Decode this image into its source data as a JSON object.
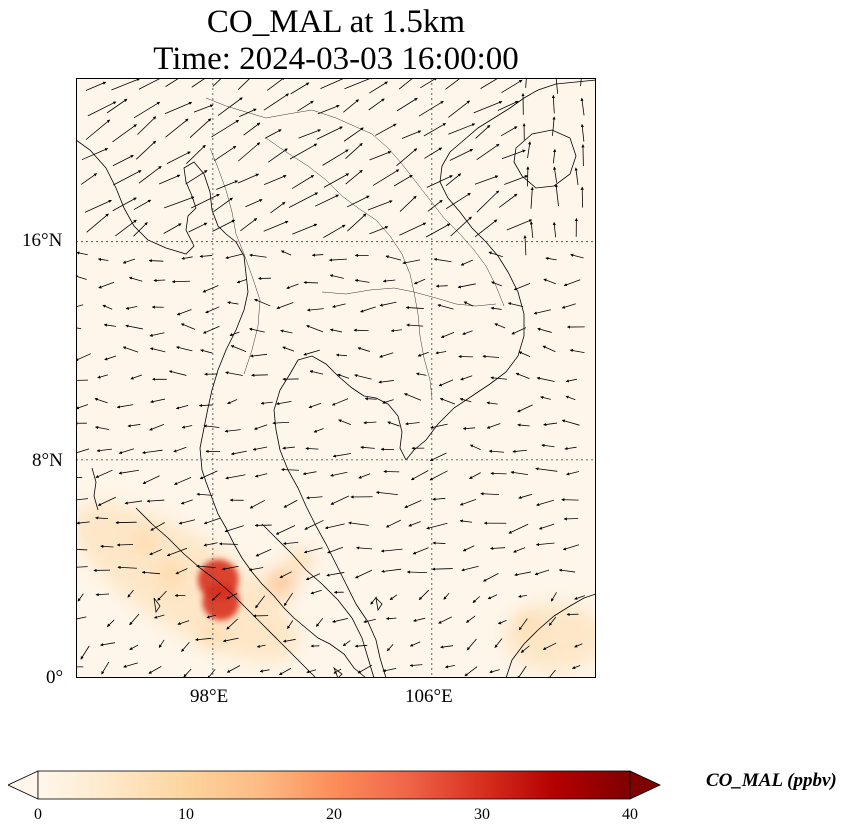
{
  "title": {
    "line1": "CO_MAL at 1.5km",
    "line2": "Time: 2024-03-03 16:00:00"
  },
  "map": {
    "extent": {
      "lon_min": 93,
      "lon_max": 112,
      "lat_min": 0,
      "lat_max": 22
    },
    "lat_ticks": [
      {
        "value": 16,
        "label": "16°N"
      },
      {
        "value": 8,
        "label": "8°N"
      },
      {
        "value": 0,
        "label": "0°"
      }
    ],
    "lon_ticks": [
      {
        "value": 98,
        "label": "98°E"
      },
      {
        "value": 106,
        "label": "106°E"
      }
    ],
    "background_color": "#fef6ea",
    "grid": true
  },
  "colorbar": {
    "label": "CO_MAL (ppbv)",
    "colormap": "OrRd",
    "min": 0,
    "max": 40,
    "ticks": [
      "0",
      "10",
      "20",
      "30",
      "40"
    ],
    "extend": "both",
    "colors": [
      "#fff7ec",
      "#fee8c8",
      "#fdd49e",
      "#fdbb84",
      "#fc8d59",
      "#ef6548",
      "#d7301f",
      "#b30000",
      "#7f0000"
    ]
  },
  "co_plumes": [
    {
      "lon": 98.2,
      "lat": 3.6,
      "value": 32
    },
    {
      "lon": 98.3,
      "lat": 2.8,
      "value": 28
    },
    {
      "lon": 100.5,
      "lat": 3.5,
      "value": 16
    },
    {
      "lon": 101.2,
      "lat": 4.3,
      "value": 10
    },
    {
      "lon": 95.5,
      "lat": 5.0,
      "value": 8
    },
    {
      "lon": 96.5,
      "lat": 3.8,
      "value": 12
    },
    {
      "lon": 98.0,
      "lat": 1.5,
      "value": 10
    },
    {
      "lon": 109.5,
      "lat": 2.0,
      "value": 8
    },
    {
      "lon": 111.0,
      "lat": 0.8,
      "value": 7
    }
  ]
}
